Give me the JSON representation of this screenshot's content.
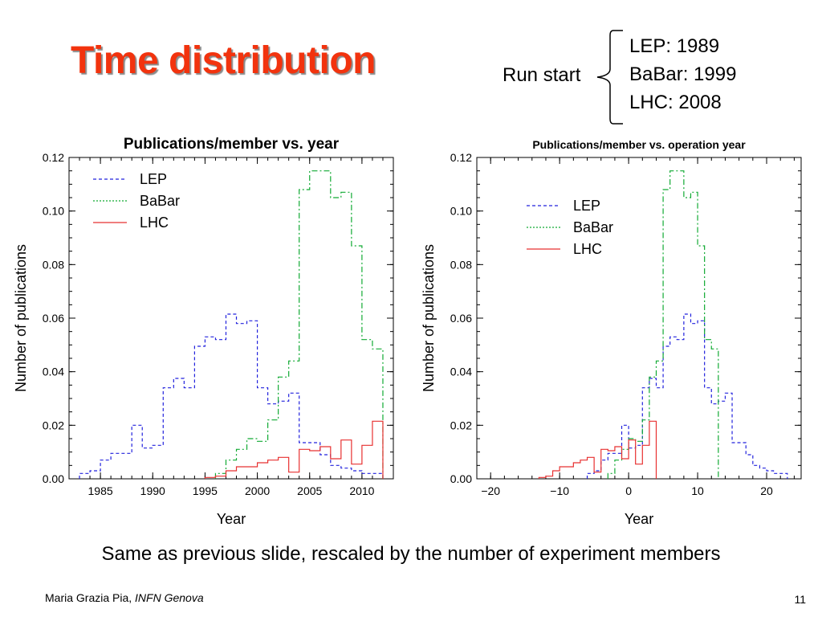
{
  "slide": {
    "title": "Time distribution",
    "run_start_label": "Run start",
    "run_start_items": [
      "LEP: 1989",
      "BaBar: 1999",
      "LHC: 2008"
    ],
    "caption": "Same as previous slide, rescaled by the number of experiment members",
    "author": "Maria Grazia Pia,",
    "affiliation": "INFN Genova",
    "page_number": "11"
  },
  "chart_data": [
    {
      "type": "line",
      "title": "Publications/member vs. year",
      "xlabel": "Year",
      "ylabel": "Number of publications",
      "xlim": [
        1982,
        2013
      ],
      "ylim": [
        0,
        0.12
      ],
      "xticks": [
        1985,
        1990,
        1995,
        2000,
        2005,
        2010
      ],
      "yticks": [
        0.0,
        0.02,
        0.04,
        0.06,
        0.08,
        0.1,
        0.12
      ],
      "ytick_labels": [
        "0.00",
        "0.02",
        "0.04",
        "0.06",
        "0.08",
        "0.10",
        "0.12"
      ],
      "legend_position": "top-left",
      "series": [
        {
          "name": "LEP",
          "color": "#2222dd",
          "style": "dashed",
          "edges": [
            1983,
            1984,
            1985,
            1986,
            1987,
            1988,
            1989,
            1990,
            1991,
            1992,
            1993,
            1994,
            1995,
            1996,
            1997,
            1998,
            1999,
            2000,
            2001,
            2002,
            2003,
            2004,
            2005,
            2006,
            2007,
            2008,
            2009,
            2010,
            2011,
            2012
          ],
          "values": [
            0.002,
            0.003,
            0.007,
            0.0095,
            0.0095,
            0.02,
            0.0115,
            0.0125,
            0.034,
            0.0375,
            0.034,
            0.0495,
            0.053,
            0.052,
            0.0615,
            0.058,
            0.059,
            0.034,
            0.028,
            0.029,
            0.032,
            0.0135,
            0.0135,
            0.009,
            0.005,
            0.004,
            0.003,
            0.002,
            0.002
          ]
        },
        {
          "name": "BaBar",
          "color": "#11aa33",
          "style": "dashdot",
          "edges": [
            1996,
            1997,
            1998,
            1999,
            2000,
            2001,
            2002,
            2003,
            2004,
            2005,
            2006,
            2007,
            2008,
            2009,
            2010,
            2011,
            2012
          ],
          "values": [
            0.002,
            0.007,
            0.011,
            0.015,
            0.014,
            0.022,
            0.038,
            0.044,
            0.108,
            0.115,
            0.115,
            0.105,
            0.107,
            0.087,
            0.052,
            0.0485
          ]
        },
        {
          "name": "LHC",
          "color": "#e83030",
          "style": "solid",
          "edges": [
            1995,
            1996,
            1997,
            1998,
            1999,
            2000,
            2001,
            2002,
            2003,
            2004,
            2005,
            2006,
            2007,
            2008,
            2009,
            2010,
            2011,
            2012
          ],
          "values": [
            0.0005,
            0.001,
            0.003,
            0.0045,
            0.0045,
            0.006,
            0.007,
            0.008,
            0.0025,
            0.011,
            0.0105,
            0.012,
            0.0075,
            0.0145,
            0.0055,
            0.0125,
            0.0215
          ]
        }
      ]
    },
    {
      "type": "line",
      "title": "Publications/member vs. operation year",
      "xlabel": "Year",
      "ylabel": "Number of publications",
      "xlim": [
        -22,
        25
      ],
      "ylim": [
        0,
        0.12
      ],
      "xticks": [
        -20,
        -10,
        0,
        10,
        20
      ],
      "xtick_labels": [
        "−20",
        "−10",
        "0",
        "10",
        "20"
      ],
      "yticks": [
        0.0,
        0.02,
        0.04,
        0.06,
        0.08,
        0.1,
        0.12
      ],
      "ytick_labels": [
        "0.00",
        "0.02",
        "0.04",
        "0.06",
        "0.08",
        "0.10",
        "0.12"
      ],
      "legend_position": "top-left",
      "series": [
        {
          "name": "LEP",
          "color": "#2222dd",
          "style": "dashed",
          "edges": [
            -6,
            -5,
            -4,
            -3,
            -2,
            -1,
            0,
            1,
            2,
            3,
            4,
            5,
            6,
            7,
            8,
            9,
            10,
            11,
            12,
            13,
            14,
            15,
            16,
            17,
            18,
            19,
            20,
            21,
            22,
            23
          ],
          "values": [
            0.002,
            0.003,
            0.007,
            0.0095,
            0.0095,
            0.02,
            0.0115,
            0.0125,
            0.034,
            0.0375,
            0.034,
            0.0495,
            0.053,
            0.052,
            0.0615,
            0.058,
            0.059,
            0.034,
            0.028,
            0.029,
            0.032,
            0.0135,
            0.0135,
            0.009,
            0.005,
            0.004,
            0.003,
            0.002,
            0.002
          ]
        },
        {
          "name": "BaBar",
          "color": "#11aa33",
          "style": "dashdot",
          "edges": [
            -3,
            -2,
            -1,
            0,
            1,
            2,
            3,
            4,
            5,
            6,
            7,
            8,
            9,
            10,
            11,
            12,
            13
          ],
          "values": [
            0.002,
            0.007,
            0.011,
            0.015,
            0.014,
            0.022,
            0.038,
            0.044,
            0.108,
            0.115,
            0.115,
            0.105,
            0.107,
            0.087,
            0.052,
            0.0485
          ]
        },
        {
          "name": "LHC",
          "color": "#e83030",
          "style": "solid",
          "edges": [
            -13,
            -12,
            -11,
            -10,
            -9,
            -8,
            -7,
            -6,
            -5,
            -4,
            -3,
            -2,
            -1,
            0,
            1,
            2,
            3,
            4
          ],
          "values": [
            0.0005,
            0.001,
            0.003,
            0.0045,
            0.0045,
            0.006,
            0.007,
            0.008,
            0.0025,
            0.011,
            0.0105,
            0.012,
            0.0075,
            0.0145,
            0.0055,
            0.0125,
            0.0215
          ]
        }
      ]
    }
  ]
}
